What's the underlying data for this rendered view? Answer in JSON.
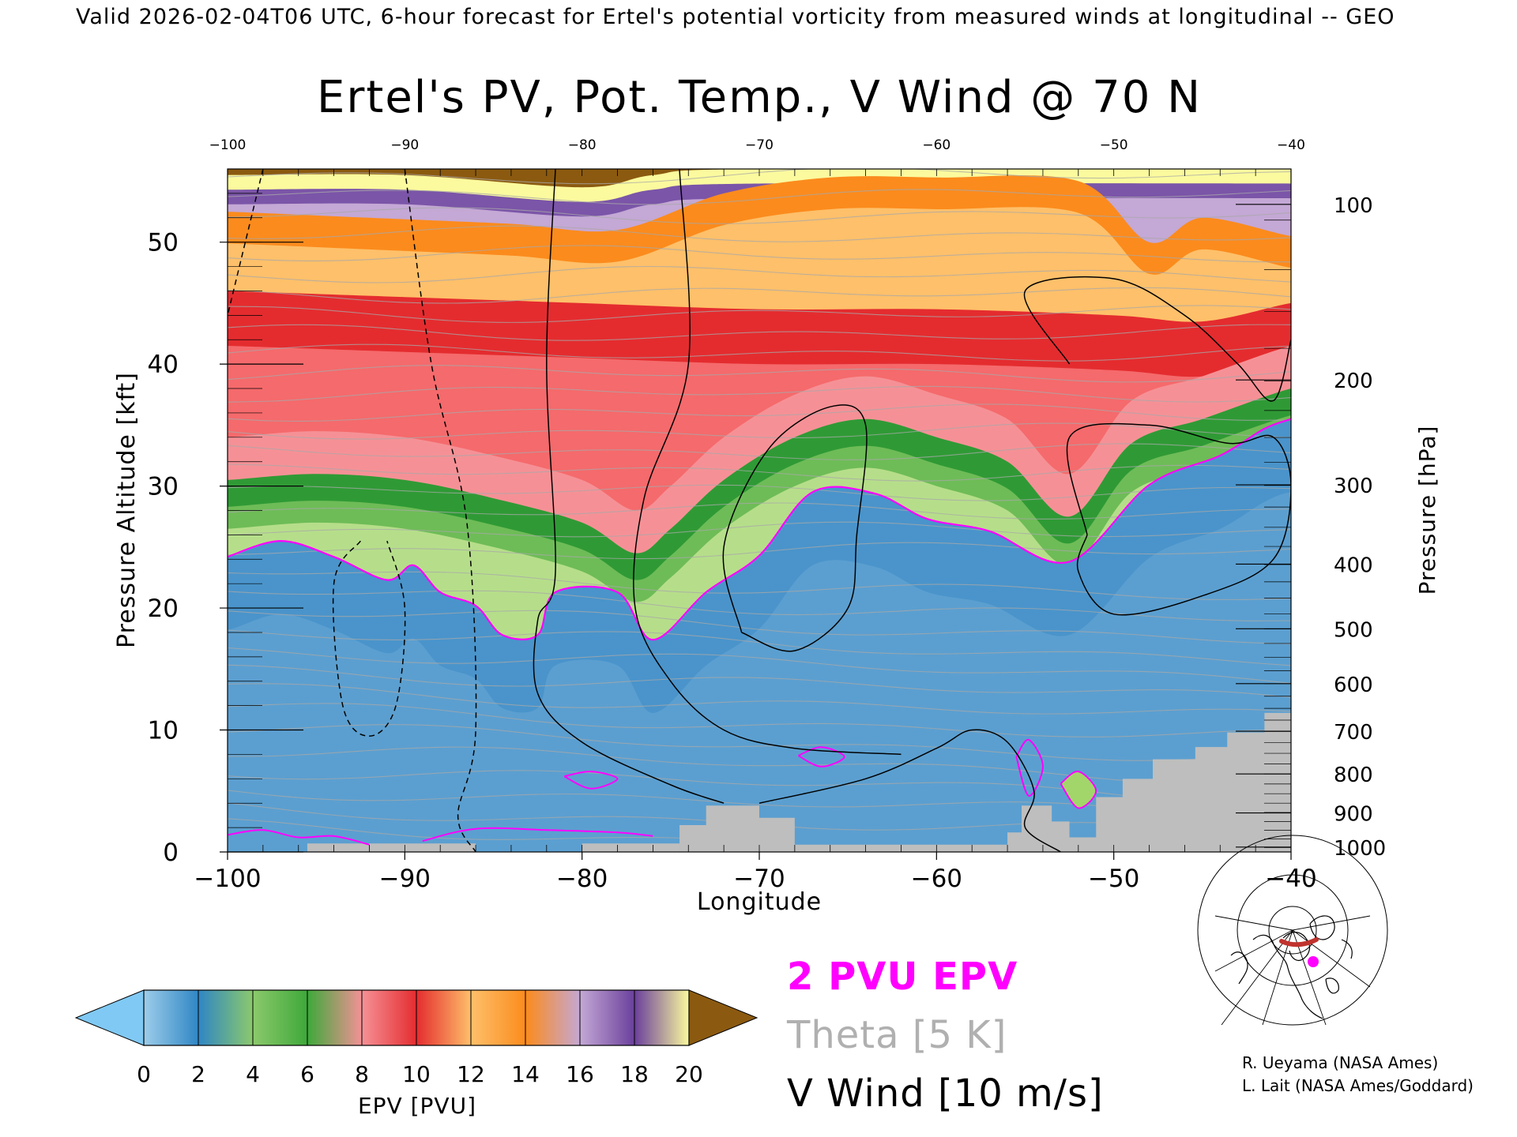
{
  "header": {
    "valid_line": "Valid 2026-02-04T06 UTC, 6-hour forecast for Ertel's potential vorticity from measured winds at longitudinal -- GEO"
  },
  "chart_data": {
    "type": "heatmap",
    "title": "Ertel's PV, Pot. Temp., V Wind @ 70 N",
    "xlabel": "Longitude",
    "ylabel": "Pressure Altitude [kft]",
    "y2label": "Pressure [hPa]",
    "xlim": [
      -100,
      -40
    ],
    "ylim": [
      0,
      56
    ],
    "x_ticks": [
      -100,
      -90,
      -80,
      -70,
      -60,
      -50,
      -40
    ],
    "x_tick_labels": [
      "−100",
      "−90",
      "−80",
      "−70",
      "−60",
      "−50",
      "−40"
    ],
    "top_tick_labels": [
      "−100",
      "−90",
      "−80",
      "−70",
      "−60",
      "−50",
      "−40"
    ],
    "y_ticks": [
      0,
      10,
      20,
      30,
      40,
      50
    ],
    "pressure_ticks": [
      {
        "hPa": 100,
        "kft": 53.1,
        "label": "100"
      },
      {
        "hPa": 200,
        "kft": 38.7,
        "label": "200"
      },
      {
        "hPa": 300,
        "kft": 30.1,
        "label": "300"
      },
      {
        "hPa": 400,
        "kft": 23.6,
        "label": "400"
      },
      {
        "hPa": 500,
        "kft": 18.3,
        "label": "500"
      },
      {
        "hPa": 600,
        "kft": 13.8,
        "label": "600"
      },
      {
        "hPa": 700,
        "kft": 9.9,
        "label": "700"
      },
      {
        "hPa": 800,
        "kft": 6.4,
        "label": "800"
      },
      {
        "hPa": 900,
        "kft": 3.2,
        "label": "900"
      },
      {
        "hPa": 1000,
        "kft": 0.4,
        "label": "1000"
      }
    ],
    "field_description": "EPV shaded (PVU); 2 PVU contour magenta; theta grey contours every 5 K; V wind black contours every 10 m/s",
    "pv_2pvu_contour_kft": [
      [
        -100,
        24.2
      ],
      [
        -97,
        25.5
      ],
      [
        -94,
        24.2
      ],
      [
        -91,
        22.3
      ],
      [
        -89.5,
        23.5
      ],
      [
        -88,
        21.3
      ],
      [
        -86,
        20.2
      ],
      [
        -84.5,
        17.8
      ],
      [
        -82.5,
        17.8
      ],
      [
        -81.5,
        21.3
      ],
      [
        -78,
        21.3
      ],
      [
        -76,
        17.4
      ],
      [
        -73,
        21.3
      ],
      [
        -70,
        24.3
      ],
      [
        -67,
        29.5
      ],
      [
        -63.5,
        29.4
      ],
      [
        -60.5,
        27.3
      ],
      [
        -57,
        26.3
      ],
      [
        -52.5,
        23.8
      ],
      [
        -48,
        30.1
      ],
      [
        -44,
        32.5
      ],
      [
        -41.5,
        34.7
      ],
      [
        -40,
        35.5
      ]
    ],
    "pv_band_tops_kft": {
      "below_2pvu": "tropopause line",
      "2_6pvu_green_top": [
        [
          -100,
          30.5
        ],
        [
          -95,
          31
        ],
        [
          -90,
          30.5
        ],
        [
          -85,
          29
        ],
        [
          -80,
          27
        ],
        [
          -77,
          24.5
        ],
        [
          -75,
          26.5
        ],
        [
          -72,
          30.5
        ],
        [
          -68,
          34
        ],
        [
          -64,
          35.5
        ],
        [
          -60,
          34
        ],
        [
          -56,
          32
        ],
        [
          -52.5,
          27.5
        ],
        [
          -49,
          33.5
        ],
        [
          -45,
          35.5
        ],
        [
          -40,
          38
        ]
      ],
      "6_10pvu_red_top": [
        [
          -100,
          46
        ],
        [
          -90,
          45.5
        ],
        [
          -80,
          45
        ],
        [
          -70,
          44.5
        ],
        [
          -60,
          44.5
        ],
        [
          -50,
          44
        ],
        [
          -45,
          43.5
        ],
        [
          -40,
          45
        ]
      ],
      "10_14pvu_orange_top": [
        [
          -100,
          52.5
        ],
        [
          -92,
          52
        ],
        [
          -84,
          51.5
        ],
        [
          -78,
          51
        ],
        [
          -72,
          54
        ],
        [
          -66,
          55.3
        ],
        [
          -60,
          55.3
        ],
        [
          -52,
          55
        ],
        [
          -48,
          50
        ],
        [
          -45,
          52
        ],
        [
          -40,
          50.5
        ]
      ],
      "14_18pvu_purple_top": [
        [
          -100,
          55.5
        ],
        [
          -90,
          55.5
        ],
        [
          -80,
          54.5
        ],
        [
          -76,
          55.5
        ],
        [
          -70,
          56
        ]
      ]
    },
    "v_wind_contours_m_s": [
      {
        "value": 10,
        "style": "dashed",
        "points": [
          [
            -90,
            56
          ],
          [
            -88.5,
            40
          ],
          [
            -86.5,
            27
          ],
          [
            -86,
            10
          ],
          [
            -87,
            3
          ],
          [
            -86,
            0
          ]
        ]
      },
      {
        "value": -10,
        "style": "dashed",
        "points": [
          [
            -98,
            56
          ],
          [
            -100,
            44
          ]
        ]
      },
      {
        "value": -10,
        "style": "dashed",
        "points": [
          [
            -92.5,
            25.5
          ],
          [
            -94,
            22
          ],
          [
            -93.5,
            12
          ],
          [
            -92,
            9.5
          ],
          [
            -90.5,
            12
          ],
          [
            -90,
            20
          ],
          [
            -91,
            25.5
          ]
        ]
      },
      {
        "value": 0,
        "style": "solid",
        "points": [
          [
            -81.5,
            56
          ],
          [
            -82,
            40
          ],
          [
            -81.5,
            23
          ],
          [
            -82.5,
            19
          ],
          [
            -82.5,
            13
          ],
          [
            -80,
            9
          ],
          [
            -75,
            5.5
          ],
          [
            -72,
            4
          ]
        ]
      },
      {
        "value": 10,
        "style": "solid",
        "points": [
          [
            -74.5,
            56
          ],
          [
            -74,
            40
          ],
          [
            -76.5,
            29
          ],
          [
            -77,
            20
          ],
          [
            -75,
            14
          ],
          [
            -72,
            10
          ],
          [
            -68,
            8.5
          ],
          [
            -62,
            8
          ]
        ]
      },
      {
        "value": 10,
        "style": "solid",
        "points": [
          [
            -71,
            18
          ],
          [
            -72,
            25
          ],
          [
            -69.5,
            33
          ],
          [
            -66,
            36.5
          ],
          [
            -64,
            35
          ],
          [
            -64.5,
            26
          ],
          [
            -65,
            20
          ],
          [
            -68,
            16.5
          ],
          [
            -71,
            18
          ]
        ]
      },
      {
        "value": 20,
        "style": "solid",
        "points": [
          [
            -52.5,
            40
          ],
          [
            -55,
            46
          ],
          [
            -50,
            47
          ],
          [
            -46,
            44
          ],
          [
            -43,
            40
          ],
          [
            -41,
            37
          ],
          [
            -40,
            42
          ]
        ]
      },
      {
        "value": 30,
        "style": "solid",
        "points": [
          [
            -51.5,
            26
          ],
          [
            -52.5,
            34
          ],
          [
            -48,
            35
          ],
          [
            -43.5,
            33.5
          ],
          [
            -41,
            34
          ],
          [
            -40,
            30
          ],
          [
            -41,
            24
          ],
          [
            -45,
            21
          ],
          [
            -50,
            19.5
          ],
          [
            -52,
            23
          ],
          [
            -51.5,
            26
          ]
        ]
      },
      {
        "value": 0,
        "style": "solid",
        "points": [
          [
            -70,
            4
          ],
          [
            -64,
            6
          ],
          [
            -60,
            8.5
          ],
          [
            -58,
            10
          ],
          [
            -56,
            9
          ],
          [
            -54.5,
            5
          ],
          [
            -55,
            2
          ],
          [
            -53,
            0
          ]
        ]
      }
    ],
    "colorbar": {
      "label": "EPV [PVU]",
      "ticks": [
        "0",
        "2",
        "4",
        "6",
        "8",
        "10",
        "12",
        "14",
        "16",
        "18",
        "20"
      ],
      "colors": [
        "#9dcdea",
        "#2f86c4",
        "#8cc96c",
        "#3ea83a",
        "#f59196",
        "#e42c2f",
        "#fec06a",
        "#fb8b1d",
        "#c4a8d5",
        "#6a3f9b",
        "#fbfa9e",
        "#8b5a10"
      ],
      "under_color": "#80c9f4",
      "over_color": "#8b5a10"
    },
    "legend": [
      {
        "label": "2 PVU EPV",
        "color": "#ff00ff"
      },
      {
        "label": "Theta [5 K]",
        "color": "#b0b0b0"
      },
      {
        "label": "V Wind [10 m/s]",
        "color": "#000000"
      }
    ],
    "inset_map": "polar stereographic map of North America with red line along 70 N and magenta dot",
    "inset_colors": {
      "section_line": "#c0332e",
      "dot": "#ff00ff"
    }
  },
  "credits": [
    "R. Ueyama (NASA Ames)",
    "L. Lait (NASA Ames/Goddard)"
  ]
}
